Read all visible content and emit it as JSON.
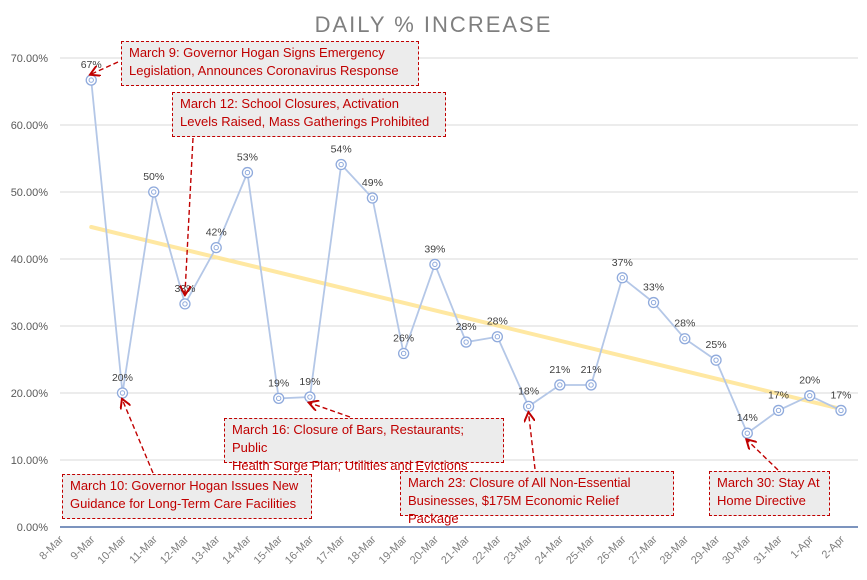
{
  "chart_data": {
    "type": "line",
    "title": "DAILY % INCREASE",
    "categories": [
      "8-Mar",
      "9-Mar",
      "10-Mar",
      "11-Mar",
      "12-Mar",
      "13-Mar",
      "14-Mar",
      "15-Mar",
      "16-Mar",
      "17-Mar",
      "18-Mar",
      "19-Mar",
      "20-Mar",
      "21-Mar",
      "22-Mar",
      "23-Mar",
      "24-Mar",
      "25-Mar",
      "26-Mar",
      "27-Mar",
      "28-Mar",
      "29-Mar",
      "30-Mar",
      "31-Mar",
      "1-Apr",
      "2-Apr"
    ],
    "series": [
      {
        "values": [
          null,
          66.7,
          20.0,
          50.0,
          33.3,
          41.7,
          52.9,
          19.2,
          19.4,
          54.1,
          49.1,
          25.9,
          39.2,
          27.6,
          28.4,
          18.0,
          21.2,
          21.2,
          37.2,
          33.5,
          28.1,
          24.9,
          14.0,
          17.4,
          19.6,
          17.4
        ],
        "data_labels": [
          "",
          "67%",
          "20%",
          "50%",
          "33%",
          "42%",
          "53%",
          "19%",
          "19%",
          "54%",
          "49%",
          "26%",
          "39%",
          "28%",
          "28%",
          "18%",
          "21%",
          "21%",
          "37%",
          "33%",
          "28%",
          "25%",
          "14%",
          "17%",
          "20%",
          "17%"
        ]
      }
    ],
    "trendline": {
      "type": "linear",
      "color": "#ffe699"
    },
    "ylim": [
      0,
      70
    ],
    "yticks": [
      "0.00%",
      "10.00%",
      "20.00%",
      "30.00%",
      "40.00%",
      "50.00%",
      "60.00%",
      "70.00%"
    ],
    "grid": true,
    "colors": {
      "line": "#b4c7e7",
      "marker": "#8faadc",
      "annotation": "#c00000"
    },
    "annotations": [
      {
        "text": "March 9: Governor Hogan Signs Emergency Legislation, Announces Coronavirus Response",
        "line1": "March 9: Governor Hogan Signs Emergency",
        "line2": "Legislation, Announces Coronavirus Response",
        "target": "9-Mar"
      },
      {
        "text": "March 12: School Closures, Activation Levels Raised, Mass Gatherings Prohibited",
        "line1": "March 12: School Closures, Activation",
        "line2": "Levels Raised, Mass Gatherings Prohibited",
        "target": "12-Mar"
      },
      {
        "text": "March 10: Governor Hogan Issues New Guidance for Long-Term Care Facilities",
        "line1": "March 10: Governor Hogan Issues New",
        "line2": "Guidance for Long-Term Care Facilities",
        "target": "10-Mar"
      },
      {
        "text": "March 16: Closure of Bars, Restaurants; Public Health Surge Plan; Utilities and Evictions",
        "line1": "March 16: Closure of Bars, Restaurants; Public",
        "line2": "Health Surge Plan; Utilities and Evictions",
        "target": "16-Mar"
      },
      {
        "text": "March 23: Closure of All Non-Essential Businesses, $175M Economic Relief Package",
        "line1": "March 23: Closure of All Non-Essential",
        "line2": "Businesses, $175M Economic Relief Package",
        "target": "23-Mar"
      },
      {
        "text": "March 30: Stay At Home Directive",
        "line1": "March 30: Stay At",
        "line2": "Home Directive",
        "target": "30-Mar"
      }
    ]
  }
}
